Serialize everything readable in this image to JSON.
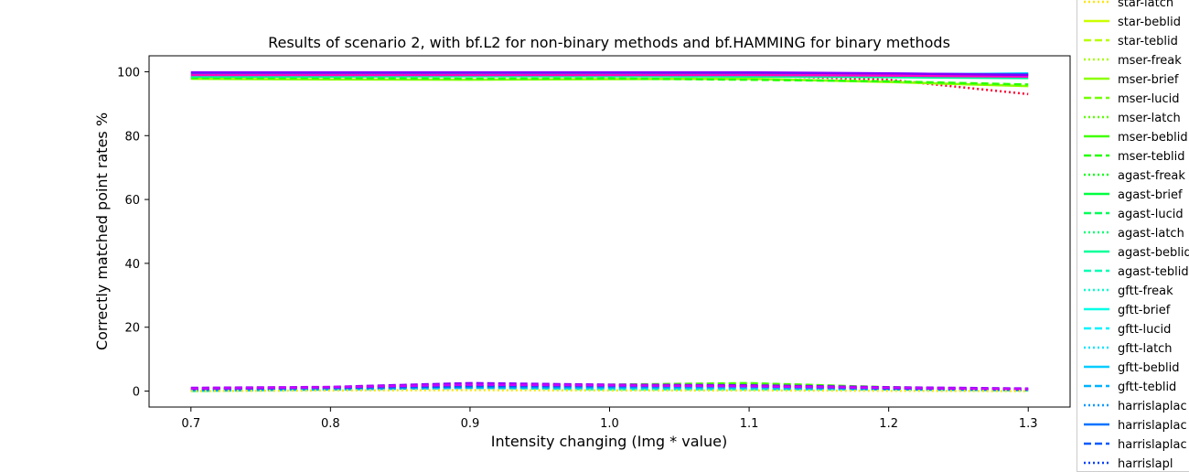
{
  "chart_data": {
    "type": "line",
    "title": "Results of scenario 2, with bf.L2 for non-binary methods and bf.HAMMING for binary methods",
    "xlabel": "Intensity changing (Img * value)",
    "ylabel": "Correctly matched point rates %",
    "xlim": [
      0.67,
      1.33
    ],
    "ylim": [
      -5,
      105
    ],
    "x_ticks": [
      "0.7",
      "0.8",
      "0.9",
      "1.0",
      "1.1",
      "1.2",
      "1.3"
    ],
    "y_ticks": [
      "0",
      "20",
      "40",
      "60",
      "80",
      "100"
    ],
    "grid": false,
    "legend_position": "outside right",
    "x": [
      0.7,
      0.8,
      0.9,
      1.0,
      1.1,
      1.2,
      1.3
    ],
    "legend_entries": [
      {
        "name": "star-latch",
        "style": "dotted",
        "color": "#ffe600"
      },
      {
        "name": "star-beblid",
        "style": "solid",
        "color": "#ccff00"
      },
      {
        "name": "star-teblid",
        "style": "dashed",
        "color": "#b8ff00"
      },
      {
        "name": "mser-freak",
        "style": "dotted",
        "color": "#a6ff00"
      },
      {
        "name": "mser-brief",
        "style": "solid",
        "color": "#8cff00"
      },
      {
        "name": "mser-lucid",
        "style": "dashed",
        "color": "#73ff00"
      },
      {
        "name": "mser-latch",
        "style": "dotted",
        "color": "#5cff00"
      },
      {
        "name": "mser-beblid",
        "style": "solid",
        "color": "#40ff00"
      },
      {
        "name": "mser-teblid",
        "style": "dashed",
        "color": "#26ff00"
      },
      {
        "name": "agast-freak",
        "style": "dotted",
        "color": "#0dff1a"
      },
      {
        "name": "agast-brief",
        "style": "solid",
        "color": "#00ff40"
      },
      {
        "name": "agast-lucid",
        "style": "dashed",
        "color": "#00ff59"
      },
      {
        "name": "agast-latch",
        "style": "dotted",
        "color": "#00ff73"
      },
      {
        "name": "agast-beblid",
        "style": "solid",
        "color": "#00ff99"
      },
      {
        "name": "agast-teblid",
        "style": "dashed",
        "color": "#00ffb3"
      },
      {
        "name": "gftt-freak",
        "style": "dotted",
        "color": "#00ffcc"
      },
      {
        "name": "gftt-brief",
        "style": "solid",
        "color": "#00ffe6"
      },
      {
        "name": "gftt-lucid",
        "style": "dashed",
        "color": "#00f2ff"
      },
      {
        "name": "gftt-latch",
        "style": "dotted",
        "color": "#00e6ff"
      },
      {
        "name": "gftt-beblid",
        "style": "solid",
        "color": "#00ccff"
      },
      {
        "name": "gftt-teblid",
        "style": "dashed",
        "color": "#00b3ff"
      },
      {
        "name": "harrislaplac",
        "style": "dotted",
        "color": "#0099ff"
      },
      {
        "name": "harrislaplac",
        "style": "solid",
        "color": "#0073ff"
      },
      {
        "name": "harrislaplac",
        "style": "dashed",
        "color": "#0059ff"
      },
      {
        "name": "harrislapl",
        "style": "dotted",
        "color": "#0040ff"
      }
    ],
    "series": [
      {
        "color": "#ff0033",
        "style": "dotted",
        "values": [
          98.5,
          98.6,
          98.7,
          98.8,
          98.9,
          97.5,
          93.0
        ]
      },
      {
        "color": "#ffffff",
        "style": "dotted",
        "values": [
          98.0,
          98.6,
          99.0,
          99.0,
          99.0,
          98.8,
          98.5
        ]
      },
      {
        "color": "#8cff00",
        "style": "solid",
        "values": [
          97.8,
          97.6,
          97.5,
          97.7,
          97.8,
          96.8,
          95.5
        ]
      },
      {
        "color": "#26ff00",
        "style": "dashed",
        "values": [
          98.0,
          98.0,
          97.8,
          97.9,
          97.5,
          97.0,
          96.0
        ]
      },
      {
        "color": "#00ff99",
        "style": "solid",
        "values": [
          98.5,
          98.5,
          98.6,
          98.6,
          98.5,
          98.3,
          98.0
        ]
      },
      {
        "color": "#00ccff",
        "style": "solid",
        "values": [
          99.0,
          99.2,
          99.3,
          99.3,
          99.2,
          99.0,
          99.5
        ]
      },
      {
        "color": "#0073ff",
        "style": "solid",
        "values": [
          99.5,
          99.6,
          99.7,
          99.7,
          99.6,
          99.4,
          99.2
        ]
      },
      {
        "color": "#ff00cc",
        "style": "solid",
        "values": [
          99.0,
          99.0,
          99.0,
          99.0,
          99.0,
          98.8,
          98.5
        ]
      },
      {
        "color": "#8000ff",
        "style": "solid",
        "values": [
          99.8,
          99.8,
          99.8,
          99.8,
          99.8,
          99.5,
          99.0
        ]
      },
      {
        "color": "#ccff00",
        "style": "dashed",
        "values": [
          0.5,
          1.0,
          1.5,
          1.5,
          2.2,
          1.0,
          0.5
        ]
      },
      {
        "color": "#40ff00",
        "style": "dashed",
        "values": [
          0.5,
          1.0,
          1.5,
          2.0,
          2.5,
          1.2,
          0.5
        ]
      },
      {
        "color": "#00ffcc",
        "style": "dashed",
        "values": [
          0.0,
          0.5,
          1.0,
          0.5,
          0.5,
          0.5,
          0.2
        ]
      },
      {
        "color": "#00b3ff",
        "style": "dashed",
        "values": [
          0.2,
          0.5,
          1.0,
          1.0,
          1.0,
          0.5,
          0.3
        ]
      },
      {
        "color": "#0059ff",
        "style": "dashed",
        "values": [
          0.5,
          1.0,
          1.5,
          1.5,
          1.5,
          0.8,
          0.5
        ]
      },
      {
        "color": "#8000ff",
        "style": "dashed",
        "values": [
          1.0,
          1.3,
          2.5,
          2.0,
          1.8,
          1.2,
          0.8
        ]
      },
      {
        "color": "#cc00ff",
        "style": "dashed",
        "values": [
          0.8,
          1.2,
          2.0,
          1.8,
          1.5,
          1.0,
          0.6
        ]
      },
      {
        "color": "#ffe600",
        "style": "dotted",
        "values": [
          0.0,
          0.2,
          0.3,
          0.2,
          0.2,
          0.1,
          0.0
        ]
      }
    ]
  }
}
